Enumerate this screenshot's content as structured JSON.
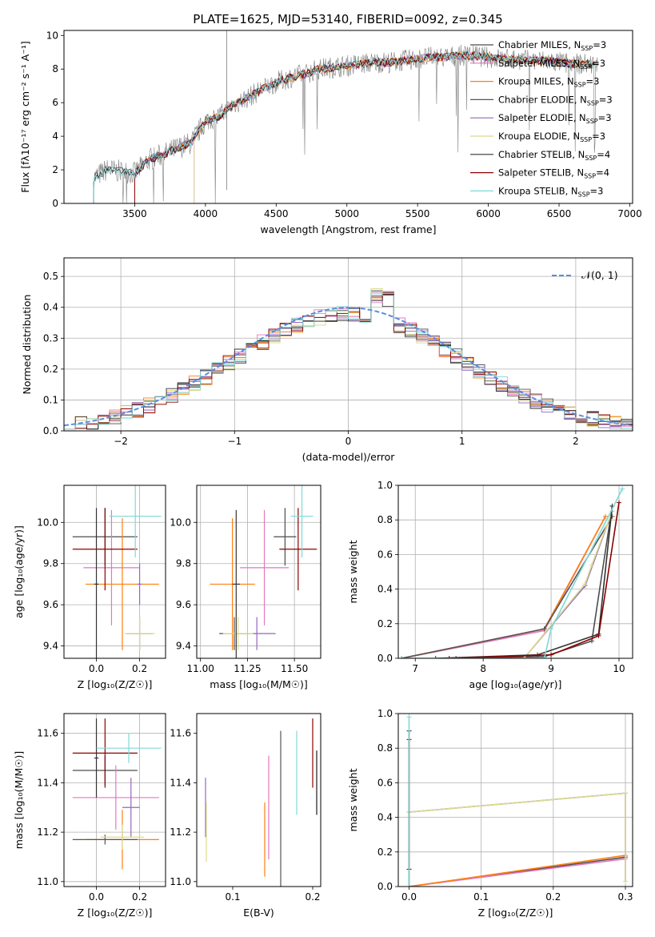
{
  "title": "PLATE=1625, MJD=53140, FIBERID=0092, z=0.345",
  "series_colors": [
    "#4d4d4d",
    "#e377c2",
    "#ff7f0e",
    "#555555",
    "#9467bd",
    "#dbdb8d",
    "#333333",
    "#8b0000",
    "#7fd8d8"
  ],
  "chart_data": [
    {
      "id": "spectrum",
      "type": "line",
      "xlabel": "wavelength [Angstrom, rest frame]",
      "ylabel": "Flux [fλ10⁻¹⁷ erg cm⁻² s⁻¹ A⁻¹]",
      "xlim": [
        3000,
        7020
      ],
      "ylim": [
        0,
        10.3
      ],
      "xticks": [
        3500,
        4000,
        4500,
        5000,
        5500,
        6000,
        6500,
        7000
      ],
      "yticks": [
        0,
        2,
        4,
        6,
        8,
        10
      ],
      "legend_position": "upper-right",
      "data_x": [
        3210,
        3300,
        3400,
        3500,
        3600,
        3700,
        3800,
        3900,
        4000,
        4100,
        4200,
        4300,
        4400,
        4500,
        4600,
        4700,
        4800,
        4900,
        5000,
        5100,
        5200,
        5300,
        5400,
        5500,
        5600,
        5700,
        5800,
        5900,
        6000,
        6100,
        6200,
        6300,
        6400,
        6500,
        6600,
        6700,
        6780
      ],
      "data_y": [
        1.5,
        2.0,
        1.9,
        1.8,
        2.6,
        2.9,
        3.3,
        3.6,
        4.9,
        5.2,
        5.9,
        6.3,
        6.8,
        7.2,
        7.5,
        7.7,
        8.0,
        8.1,
        8.2,
        8.3,
        8.4,
        8.4,
        8.5,
        8.6,
        8.7,
        8.7,
        8.8,
        8.8,
        8.7,
        8.6,
        8.6,
        8.5,
        8.5,
        8.4,
        8.3,
        8.3,
        8.2
      ],
      "series": [
        {
          "name": "Chabrier MILES, N",
          "sub": "SSP",
          "suffix": "=3"
        },
        {
          "name": "Salpeter MILES, N",
          "sub": "SSP",
          "suffix": "=3"
        },
        {
          "name": "Kroupa MILES, N",
          "sub": "SSP",
          "suffix": "=3"
        },
        {
          "name": "Chabrier ELODIE, N",
          "sub": "SSP",
          "suffix": "=3"
        },
        {
          "name": "Salpeter ELODIE, N",
          "sub": "SSP",
          "suffix": "=3"
        },
        {
          "name": "Kroupa ELODIE, N",
          "sub": "SSP",
          "suffix": "=3"
        },
        {
          "name": "Chabrier STELIB, N",
          "sub": "SSP",
          "suffix": "=4"
        },
        {
          "name": "Salpeter STELIB, N",
          "sub": "SSP",
          "suffix": "=4"
        },
        {
          "name": "Kroupa STELIB, N",
          "sub": "SSP",
          "suffix": "=3"
        }
      ]
    },
    {
      "id": "residuals",
      "type": "line",
      "xlabel": "(data-model)/error",
      "ylabel": "Normed distribution",
      "xlim": [
        -2.5,
        2.5
      ],
      "ylim": [
        0,
        0.56
      ],
      "xticks": [
        -2,
        -1,
        0,
        1,
        2
      ],
      "yticks": [
        0.0,
        0.1,
        0.2,
        0.3,
        0.4,
        0.5
      ],
      "grid": true,
      "legend": "𝒩(0, 1)",
      "legend_position": "upper-right"
    },
    {
      "id": "z_age",
      "type": "scatter",
      "xlabel": "Z [log₁₀(Z/Z☉)]",
      "ylabel": "age  [log₁₀(age/yr)]",
      "xlim": [
        -0.15,
        0.32
      ],
      "ylim": [
        9.34,
        10.18
      ],
      "xticks": [
        0.0,
        0.2
      ],
      "yticks": [
        9.4,
        9.6,
        9.8,
        10.0
      ],
      "grid": true,
      "points": [
        {
          "x": 0.04,
          "y": 9.93,
          "xerr": 0.15,
          "yerr": 0.14,
          "c": 0
        },
        {
          "x": 0.07,
          "y": 9.78,
          "xerr": 0.13,
          "yerr": 0.28,
          "c": 1
        },
        {
          "x": 0.12,
          "y": 9.7,
          "xerr": 0.17,
          "yerr": 0.32,
          "c": 2
        },
        {
          "x": 0.2,
          "y": 9.46,
          "xerr": 0.06,
          "yerr": 0.08,
          "c": 3
        },
        {
          "x": 0.2,
          "y": 9.7,
          "xerr": 0.01,
          "yerr": 0.1,
          "c": 4
        },
        {
          "x": 0.2,
          "y": 9.46,
          "xerr": 0.07,
          "yerr": 0.08,
          "c": 5
        },
        {
          "x": 0.0,
          "y": 9.7,
          "xerr": 0.01,
          "yerr": 0.37,
          "c": 6
        },
        {
          "x": 0.04,
          "y": 9.87,
          "xerr": 0.15,
          "yerr": 0.2,
          "c": 7
        },
        {
          "x": 0.18,
          "y": 10.03,
          "xerr": 0.12,
          "yerr": 0.2,
          "c": 8
        }
      ]
    },
    {
      "id": "mass_age",
      "type": "scatter",
      "xlabel": "mass [log₁₀(M/M☉)]",
      "ylabel": "",
      "xlim": [
        10.98,
        11.64
      ],
      "ylim": [
        9.34,
        10.18
      ],
      "xticks": [
        11.0,
        11.25,
        11.5
      ],
      "yticks": [
        9.4,
        9.6,
        9.8,
        10.0
      ],
      "grid": true,
      "points": [
        {
          "x": 11.45,
          "y": 9.93,
          "xerr": 0.06,
          "yerr": 0.14,
          "c": 0
        },
        {
          "x": 11.34,
          "y": 9.78,
          "xerr": 0.13,
          "yerr": 0.28,
          "c": 1
        },
        {
          "x": 11.17,
          "y": 9.7,
          "xerr": 0.12,
          "yerr": 0.32,
          "c": 2
        },
        {
          "x": 11.18,
          "y": 9.46,
          "xerr": 0.08,
          "yerr": 0.08,
          "c": 3
        },
        {
          "x": 11.3,
          "y": 9.46,
          "xerr": 0.1,
          "yerr": 0.08,
          "c": 4
        },
        {
          "x": 11.2,
          "y": 9.46,
          "xerr": 0.08,
          "yerr": 0.08,
          "c": 5
        },
        {
          "x": 11.19,
          "y": 9.7,
          "xerr": 0.02,
          "yerr": 0.36,
          "c": 6
        },
        {
          "x": 11.52,
          "y": 9.87,
          "xerr": 0.1,
          "yerr": 0.2,
          "c": 7
        },
        {
          "x": 11.54,
          "y": 10.03,
          "xerr": 0.06,
          "yerr": 0.2,
          "c": 8
        }
      ]
    },
    {
      "id": "age_weight",
      "type": "line",
      "xlabel": "age  [log₁₀(age/yr)]",
      "ylabel": "mass weight",
      "xlim": [
        6.75,
        10.2
      ],
      "ylim": [
        0,
        1.0
      ],
      "xticks": [
        7,
        8,
        9,
        10
      ],
      "yticks": [
        0.0,
        0.2,
        0.4,
        0.6,
        0.8,
        1.0
      ],
      "grid": true,
      "lines": [
        {
          "c": 0,
          "x": [
            7.6,
            8.9,
            9.6,
            9.9
          ],
          "y": [
            0.0,
            0.01,
            0.1,
            0.88
          ]
        },
        {
          "c": 1,
          "x": [
            6.8,
            8.9,
            9.8
          ],
          "y": [
            0.0,
            0.16,
            0.82
          ]
        },
        {
          "c": 2,
          "x": [
            6.8,
            8.9,
            9.8
          ],
          "y": [
            0.0,
            0.17,
            0.82
          ]
        },
        {
          "c": 3,
          "x": [
            6.8,
            8.9,
            9.9
          ],
          "y": [
            0.0,
            0.17,
            0.82
          ]
        },
        {
          "c": 4,
          "x": [
            8.6,
            9.5,
            9.9
          ],
          "y": [
            0.0,
            0.42,
            0.85
          ]
        },
        {
          "c": 5,
          "x": [
            8.6,
            9.5,
            9.6,
            9.9
          ],
          "y": [
            0.0,
            0.43,
            0.54,
            0.85
          ]
        },
        {
          "c": 6,
          "x": [
            7.3,
            8.8,
            9.7,
            9.9
          ],
          "y": [
            0.0,
            0.02,
            0.14,
            0.88
          ]
        },
        {
          "c": 7,
          "x": [
            7.5,
            9.0,
            9.7,
            10.0
          ],
          "y": [
            0.0,
            0.02,
            0.13,
            0.9
          ]
        },
        {
          "c": 8,
          "x": [
            6.8,
            8.9,
            9.0,
            10.05
          ],
          "y": [
            0.0,
            0.0,
            0.17,
            0.98
          ]
        }
      ]
    },
    {
      "id": "z_mass",
      "type": "scatter",
      "xlabel": "Z [log₁₀(Z/Z☉)]",
      "ylabel": "mass [log₁₀(M/M☉)]",
      "xlim": [
        -0.15,
        0.32
      ],
      "ylim": [
        10.98,
        11.68
      ],
      "xticks": [
        0.0,
        0.2
      ],
      "yticks": [
        11.0,
        11.2,
        11.4,
        11.6
      ],
      "grid": true,
      "points": [
        {
          "x": 0.04,
          "y": 11.45,
          "xerr": 0.15,
          "yerr": 0.06,
          "c": 0
        },
        {
          "x": 0.09,
          "y": 11.34,
          "xerr": 0.2,
          "yerr": 0.13,
          "c": 1
        },
        {
          "x": 0.12,
          "y": 11.17,
          "xerr": 0.17,
          "yerr": 0.12,
          "c": 2
        },
        {
          "x": 0.04,
          "y": 11.17,
          "xerr": 0.15,
          "yerr": 0.02,
          "c": 3
        },
        {
          "x": 0.16,
          "y": 11.3,
          "xerr": 0.04,
          "yerr": 0.12,
          "c": 4
        },
        {
          "x": 0.12,
          "y": 11.18,
          "xerr": 0.1,
          "yerr": 0.05,
          "c": 5
        },
        {
          "x": 0.0,
          "y": 11.5,
          "xerr": 0.01,
          "yerr": 0.16,
          "c": 6
        },
        {
          "x": 0.04,
          "y": 11.52,
          "xerr": 0.15,
          "yerr": 0.14,
          "c": 7
        },
        {
          "x": 0.15,
          "y": 11.54,
          "xerr": 0.15,
          "yerr": 0.06,
          "c": 8
        }
      ]
    },
    {
      "id": "ebv_mass",
      "type": "scatter",
      "xlabel": "E(B-V)",
      "ylabel": "",
      "xlim": [
        0.055,
        0.21
      ],
      "ylim": [
        10.98,
        11.68
      ],
      "xticks": [
        0.1,
        0.2
      ],
      "yticks": [
        11.0,
        11.2,
        11.4,
        11.6
      ],
      "grid": false,
      "points": [
        {
          "x": 0.205,
          "y": 11.4,
          "xerr": 0,
          "yerr": 0.13,
          "c": 0
        },
        {
          "x": 0.145,
          "y": 11.3,
          "xerr": 0,
          "yerr": 0.21,
          "c": 1
        },
        {
          "x": 0.14,
          "y": 11.17,
          "xerr": 0,
          "yerr": 0.15,
          "c": 2
        },
        {
          "x": 0.16,
          "y": 11.28,
          "xerr": 0,
          "yerr": 0.33,
          "c": 3
        },
        {
          "x": 0.066,
          "y": 11.3,
          "xerr": 0,
          "yerr": 0.12,
          "c": 4
        },
        {
          "x": 0.067,
          "y": 11.2,
          "xerr": 0,
          "yerr": 0.12,
          "c": 5
        },
        {
          "x": 0.205,
          "y": 11.4,
          "xerr": 0,
          "yerr": 0.13,
          "c": 6
        },
        {
          "x": 0.2,
          "y": 11.52,
          "xerr": 0,
          "yerr": 0.14,
          "c": 7
        },
        {
          "x": 0.18,
          "y": 11.44,
          "xerr": 0,
          "yerr": 0.17,
          "c": 8
        }
      ]
    },
    {
      "id": "z_weight",
      "type": "line",
      "xlabel": "Z [log₁₀(Z/Z☉)]",
      "ylabel": "mass weight",
      "xlim": [
        -0.015,
        0.31
      ],
      "ylim": [
        0,
        1.0
      ],
      "xticks": [
        0.0,
        0.1,
        0.2,
        0.3
      ],
      "yticks": [
        0.0,
        0.2,
        0.4,
        0.6,
        0.8,
        1.0
      ],
      "grid": true,
      "lines": [
        {
          "c": 0,
          "x": [
            0.0,
            0.3
          ],
          "y": [
            0.0,
            0.17
          ]
        },
        {
          "c": 1,
          "x": [
            0.0,
            0.3
          ],
          "y": [
            0.0,
            0.16
          ]
        },
        {
          "c": 2,
          "x": [
            0.0,
            0.3
          ],
          "y": [
            0.0,
            0.18
          ]
        },
        {
          "c": 4,
          "x": [
            0.0,
            0.3,
            0.3
          ],
          "y": [
            0.43,
            0.54,
            0.03
          ]
        },
        {
          "c": 5,
          "x": [
            0.0,
            0.3,
            0.3
          ],
          "y": [
            0.43,
            0.54,
            0.03
          ]
        },
        {
          "c": 6,
          "x": [
            0.0,
            0.0
          ],
          "y": [
            0.0,
            0.9
          ]
        },
        {
          "c": 7,
          "x": [
            0.0,
            0.0
          ],
          "y": [
            0.1,
            0.85
          ]
        },
        {
          "c": 8,
          "x": [
            0.0,
            0.0
          ],
          "y": [
            0.0,
            0.98
          ]
        }
      ]
    }
  ]
}
